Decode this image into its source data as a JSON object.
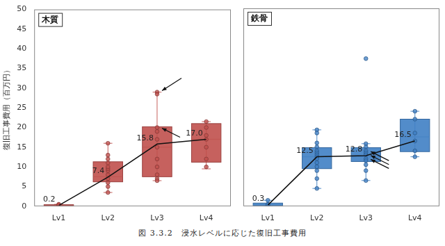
{
  "caption": "図 3.3.2　浸水レベルに応じた復旧工事費用",
  "chart_data": [
    {
      "type": "box",
      "title": "木質",
      "y_label": "復旧工事費用（百万円）",
      "categories": [
        "Lv1",
        "Lv2",
        "Lv3",
        "Lv4"
      ],
      "color": "#c0504d",
      "boxes": [
        {
          "min": 0,
          "q1": 0.1,
          "median": 0.2,
          "q3": 0.4,
          "max": 0.5,
          "points": [
            0.1,
            0.2,
            0.3,
            0.4,
            0.5
          ],
          "highlighted": []
        },
        {
          "min": 3.5,
          "q1": 6.2,
          "median": 7.5,
          "q3": 11.3,
          "max": 16,
          "points": [
            3.5,
            5,
            6,
            7,
            8,
            9,
            9.5,
            10,
            11,
            12,
            13,
            16
          ],
          "highlighted": []
        },
        {
          "min": 6.5,
          "q1": 7.5,
          "median": 15,
          "q3": 20.2,
          "max": 29,
          "points": [
            29,
            28.5,
            20,
            19,
            17,
            15,
            12,
            10,
            8,
            7,
            6.5
          ],
          "highlighted": [
            29,
            20
          ]
        },
        {
          "min": 9.5,
          "q1": 11.2,
          "median": 17,
          "q3": 21,
          "max": 21.5,
          "points": [
            21.5,
            20,
            18,
            17,
            15,
            12,
            10
          ],
          "highlighted": []
        }
      ],
      "line": {
        "values": [
          0.2,
          7.4,
          15.8,
          17
        ],
        "value_labels": [
          "0.2",
          "7.4",
          "15.8",
          "17.0"
        ]
      },
      "ylim": [
        0,
        50
      ],
      "yticks": [
        0,
        5,
        10,
        15,
        20,
        25,
        30,
        35,
        40,
        45,
        50
      ],
      "grid": false,
      "data_labels": true
    },
    {
      "type": "box",
      "title": "鉄骨",
      "categories": [
        "Lv1",
        "Lv2",
        "Lv3",
        "Lv4"
      ],
      "color": "#3f7fc4",
      "boxes": [
        {
          "min": 0,
          "q1": 0.1,
          "median": 0.3,
          "q3": 0.8,
          "max": 1.5,
          "points": [
            0.2,
            0.3,
            0.5,
            1.5
          ],
          "highlighted": []
        },
        {
          "min": 4.5,
          "q1": 9.5,
          "median": 12.5,
          "q3": 14.8,
          "max": 19.3,
          "points": [
            19.3,
            18.5,
            16,
            15,
            14,
            13.5,
            13,
            12.5,
            12,
            11,
            10,
            9,
            7,
            4.5
          ],
          "highlighted": []
        },
        {
          "min": 6.5,
          "q1": 11.3,
          "median": 12.5,
          "q3": 14.8,
          "max": 15.8,
          "points": [
            37.3,
            15.8,
            15,
            14,
            13.5,
            13,
            12,
            11.5,
            10.5,
            9,
            6.5
          ],
          "highlighted": [
            14,
            13,
            12
          ]
        },
        {
          "min": 12.5,
          "q1": 13.8,
          "median": 17.5,
          "q3": 22,
          "max": 24,
          "points": [
            24,
            22,
            18.5,
            16.5,
            14,
            12.5
          ],
          "highlighted": []
        }
      ],
      "line": {
        "values": [
          0.3,
          12.5,
          12.8,
          16.5
        ],
        "value_labels": [
          "0.3",
          "12.5",
          "12.8",
          "16.5"
        ]
      },
      "ylim": [
        0,
        50
      ],
      "yticks": [
        0,
        5,
        10,
        15,
        20,
        25,
        30,
        35,
        40,
        45,
        50
      ],
      "grid": false,
      "data_labels": true,
      "tick_labels": "x"
    }
  ]
}
